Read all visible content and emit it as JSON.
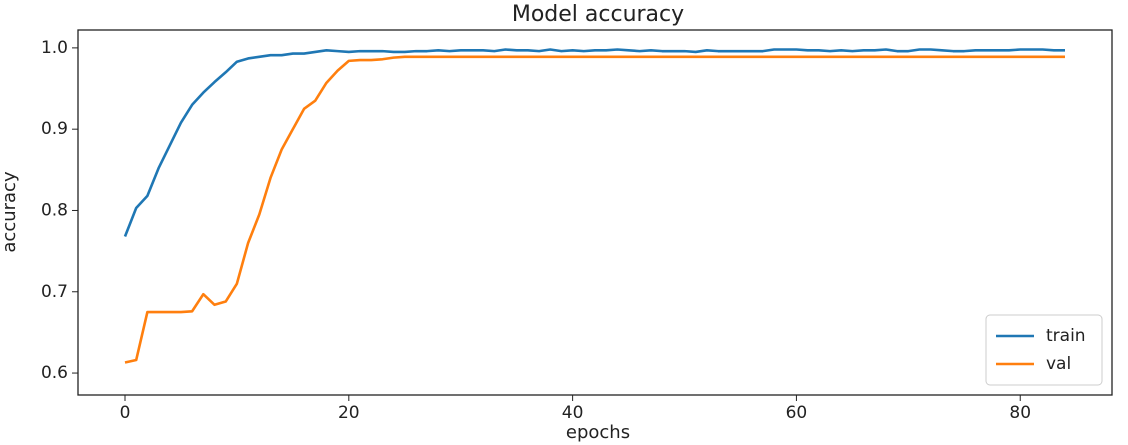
{
  "chart_data": {
    "type": "line",
    "title": "Model accuracy",
    "x_label": "epochs",
    "y_label": "accuracy",
    "x": [
      0,
      1,
      2,
      3,
      4,
      5,
      6,
      7,
      8,
      9,
      10,
      11,
      12,
      13,
      14,
      15,
      16,
      17,
      18,
      19,
      20,
      21,
      22,
      23,
      24,
      25,
      26,
      27,
      28,
      29,
      30,
      31,
      32,
      33,
      34,
      35,
      36,
      37,
      38,
      39,
      40,
      41,
      42,
      43,
      44,
      45,
      46,
      47,
      48,
      49,
      50,
      51,
      52,
      53,
      54,
      55,
      56,
      57,
      58,
      59,
      60,
      61,
      62,
      63,
      64,
      65,
      66,
      67,
      68,
      69,
      70,
      71,
      72,
      73,
      74,
      75,
      76,
      77,
      78,
      79,
      80,
      81,
      82,
      83,
      84
    ],
    "series": [
      {
        "name": "train",
        "color": "#1f77b4",
        "values": [
          0.768,
          0.803,
          0.818,
          0.852,
          0.88,
          0.908,
          0.93,
          0.945,
          0.958,
          0.97,
          0.983,
          0.987,
          0.989,
          0.991,
          0.991,
          0.993,
          0.993,
          0.995,
          0.997,
          0.996,
          0.995,
          0.996,
          0.996,
          0.996,
          0.995,
          0.995,
          0.996,
          0.996,
          0.997,
          0.996,
          0.997,
          0.997,
          0.997,
          0.996,
          0.998,
          0.997,
          0.997,
          0.996,
          0.998,
          0.996,
          0.997,
          0.996,
          0.997,
          0.997,
          0.998,
          0.997,
          0.996,
          0.997,
          0.996,
          0.996,
          0.996,
          0.995,
          0.997,
          0.996,
          0.996,
          0.996,
          0.996,
          0.996,
          0.998,
          0.998,
          0.998,
          0.997,
          0.997,
          0.996,
          0.997,
          0.996,
          0.997,
          0.997,
          0.998,
          0.996,
          0.996,
          0.998,
          0.998,
          0.997,
          0.996,
          0.996,
          0.997,
          0.997,
          0.997,
          0.997,
          0.998,
          0.998,
          0.998,
          0.997,
          0.997
        ]
      },
      {
        "name": "val",
        "color": "#ff7f0e",
        "values": [
          0.613,
          0.616,
          0.675,
          0.675,
          0.675,
          0.675,
          0.676,
          0.697,
          0.684,
          0.688,
          0.71,
          0.76,
          0.795,
          0.84,
          0.875,
          0.9,
          0.925,
          0.935,
          0.957,
          0.972,
          0.984,
          0.985,
          0.985,
          0.986,
          0.988,
          0.989,
          0.989,
          0.989,
          0.989,
          0.989,
          0.989,
          0.989,
          0.989,
          0.989,
          0.989,
          0.989,
          0.989,
          0.989,
          0.989,
          0.989,
          0.989,
          0.989,
          0.989,
          0.989,
          0.989,
          0.989,
          0.989,
          0.989,
          0.989,
          0.989,
          0.989,
          0.989,
          0.989,
          0.989,
          0.989,
          0.989,
          0.989,
          0.989,
          0.989,
          0.989,
          0.989,
          0.989,
          0.989,
          0.989,
          0.989,
          0.989,
          0.989,
          0.989,
          0.989,
          0.989,
          0.989,
          0.989,
          0.989,
          0.989,
          0.989,
          0.989,
          0.989,
          0.989,
          0.989,
          0.989,
          0.989,
          0.989,
          0.989,
          0.989,
          0.989
        ]
      }
    ],
    "xlim": [
      -4.2,
      88.2
    ],
    "xticks": [
      0,
      20,
      40,
      60,
      80
    ],
    "ylim": [
      0.573,
      1.022
    ],
    "yticks": [
      0.6,
      0.7,
      0.8,
      0.9,
      {
        "value": 1,
        "label": "1.0"
      }
    ],
    "grid": false,
    "legend": "lower right"
  }
}
